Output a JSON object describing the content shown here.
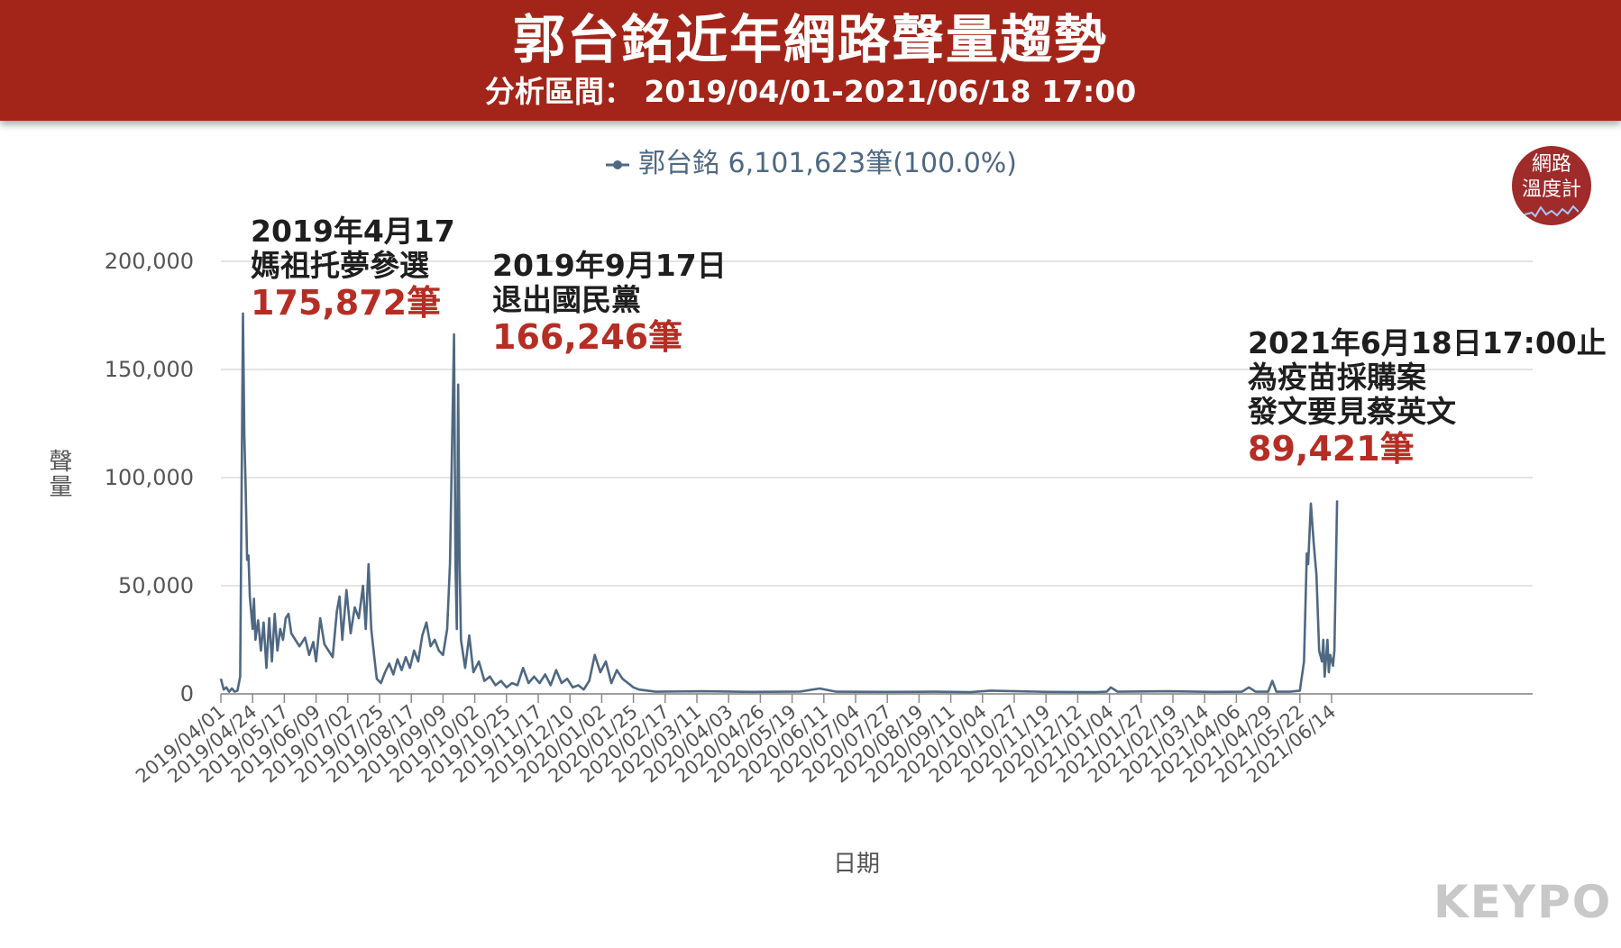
{
  "header": {
    "title": "郭台銘近年網路聲量趨勢",
    "subtitle": "分析區間： 2019/04/01-2021/06/18 17:00"
  },
  "legend": {
    "label": "郭台銘 6,101,623筆(100.0%)"
  },
  "badge": {
    "line1": "網路",
    "line2": "溫度計"
  },
  "brand": "KEYPO",
  "annotations": [
    {
      "line1": "2019年4月17",
      "line2": "媽祖托夢參選",
      "value": "175,872筆"
    },
    {
      "line1": "2019年9月17日",
      "line2": "退出國民黨",
      "value": "166,246筆"
    },
    {
      "line1": "2021年6月18日17:00止",
      "line2": "為疫苗採購案",
      "line3": "發文要見蔡英文",
      "value": "89,421筆"
    }
  ],
  "chart_data": {
    "type": "line",
    "xlabel": "日期",
    "ylabel": "聲量",
    "ylim": [
      0,
      200000
    ],
    "yticks": [
      0,
      50000,
      100000,
      150000,
      200000
    ],
    "ytick_labels": [
      "0",
      "50,000",
      "100,000",
      "150,000",
      "200,000"
    ],
    "grid": true,
    "legend_position": "top-center",
    "x_tick_labels": [
      "2019/04/01",
      "2019/04/24",
      "2019/05/17",
      "2019/06/09",
      "2019/07/02",
      "2019/07/25",
      "2019/08/17",
      "2019/09/09",
      "2019/10/02",
      "2019/10/25",
      "2019/11/17",
      "2019/12/10",
      "2020/01/02",
      "2020/01/25",
      "2020/02/17",
      "2020/03/11",
      "2020/04/03",
      "2020/04/26",
      "2020/05/19",
      "2020/06/11",
      "2020/07/04",
      "2020/07/27",
      "2020/08/19",
      "2020/09/11",
      "2020/10/04",
      "2020/10/27",
      "2020/11/19",
      "2020/12/12",
      "2021/01/04",
      "2021/01/27",
      "2021/02/19",
      "2021/03/14",
      "2021/04/06",
      "2021/04/29",
      "2021/05/22",
      "2021/06/14"
    ],
    "series": [
      {
        "name": "郭台銘",
        "color": "#4f6882",
        "points": [
          [
            "2019/04/01",
            7000
          ],
          [
            "2019/04/03",
            2000
          ],
          [
            "2019/04/05",
            3000
          ],
          [
            "2019/04/07",
            1000
          ],
          [
            "2019/04/09",
            2500
          ],
          [
            "2019/04/11",
            1000
          ],
          [
            "2019/04/13",
            1500
          ],
          [
            "2019/04/15",
            8000
          ],
          [
            "2019/04/17",
            175872
          ],
          [
            "2019/04/18",
            120000
          ],
          [
            "2019/04/19",
            95000
          ],
          [
            "2019/04/20",
            62000
          ],
          [
            "2019/04/21",
            64000
          ],
          [
            "2019/04/22",
            45000
          ],
          [
            "2019/04/24",
            30000
          ],
          [
            "2019/04/25",
            44000
          ],
          [
            "2019/04/26",
            25000
          ],
          [
            "2019/04/28",
            34000
          ],
          [
            "2019/04/30",
            20000
          ],
          [
            "2019/05/02",
            33000
          ],
          [
            "2019/05/04",
            12000
          ],
          [
            "2019/05/06",
            35000
          ],
          [
            "2019/05/08",
            15000
          ],
          [
            "2019/05/10",
            37000
          ],
          [
            "2019/05/12",
            20000
          ],
          [
            "2019/05/14",
            30000
          ],
          [
            "2019/05/16",
            25000
          ],
          [
            "2019/05/18",
            35000
          ],
          [
            "2019/05/20",
            37000
          ],
          [
            "2019/05/22",
            28000
          ],
          [
            "2019/05/25",
            25000
          ],
          [
            "2019/05/28",
            22000
          ],
          [
            "2019/06/01",
            26000
          ],
          [
            "2019/06/04",
            18000
          ],
          [
            "2019/06/07",
            24000
          ],
          [
            "2019/06/09",
            15000
          ],
          [
            "2019/06/12",
            35000
          ],
          [
            "2019/06/15",
            23000
          ],
          [
            "2019/06/18",
            20000
          ],
          [
            "2019/06/21",
            17000
          ],
          [
            "2019/06/24",
            38000
          ],
          [
            "2019/06/26",
            45000
          ],
          [
            "2019/06/28",
            25000
          ],
          [
            "2019/07/01",
            48000
          ],
          [
            "2019/07/04",
            28000
          ],
          [
            "2019/07/07",
            40000
          ],
          [
            "2019/07/10",
            35000
          ],
          [
            "2019/07/13",
            50000
          ],
          [
            "2019/07/15",
            30000
          ],
          [
            "2019/07/17",
            60000
          ],
          [
            "2019/07/19",
            30000
          ],
          [
            "2019/07/21",
            18000
          ],
          [
            "2019/07/23",
            7000
          ],
          [
            "2019/07/26",
            5000
          ],
          [
            "2019/07/29",
            10000
          ],
          [
            "2019/08/01",
            14000
          ],
          [
            "2019/08/04",
            9000
          ],
          [
            "2019/08/07",
            16000
          ],
          [
            "2019/08/10",
            11000
          ],
          [
            "2019/08/13",
            17000
          ],
          [
            "2019/08/16",
            12000
          ],
          [
            "2019/08/19",
            20000
          ],
          [
            "2019/08/22",
            15000
          ],
          [
            "2019/08/25",
            27000
          ],
          [
            "2019/08/28",
            33000
          ],
          [
            "2019/08/31",
            22000
          ],
          [
            "2019/09/03",
            25000
          ],
          [
            "2019/09/06",
            20000
          ],
          [
            "2019/09/09",
            18000
          ],
          [
            "2019/09/12",
            30000
          ],
          [
            "2019/09/14",
            60000
          ],
          [
            "2019/09/17",
            166246
          ],
          [
            "2019/09/18",
            60000
          ],
          [
            "2019/09/19",
            30000
          ],
          [
            "2019/09/20",
            143000
          ],
          [
            "2019/09/21",
            60000
          ],
          [
            "2019/09/22",
            25000
          ],
          [
            "2019/09/25",
            12000
          ],
          [
            "2019/09/28",
            27000
          ],
          [
            "2019/10/01",
            10000
          ],
          [
            "2019/10/05",
            15000
          ],
          [
            "2019/10/09",
            6000
          ],
          [
            "2019/10/13",
            8000
          ],
          [
            "2019/10/17",
            4000
          ],
          [
            "2019/10/21",
            6000
          ],
          [
            "2019/10/25",
            3000
          ],
          [
            "2019/10/29",
            5000
          ],
          [
            "2019/11/02",
            4000
          ],
          [
            "2019/11/06",
            12000
          ],
          [
            "2019/11/10",
            5000
          ],
          [
            "2019/11/14",
            8000
          ],
          [
            "2019/11/18",
            5000
          ],
          [
            "2019/11/22",
            9000
          ],
          [
            "2019/11/26",
            4000
          ],
          [
            "2019/11/30",
            11000
          ],
          [
            "2019/12/04",
            5000
          ],
          [
            "2019/12/08",
            7000
          ],
          [
            "2019/12/12",
            3000
          ],
          [
            "2019/12/16",
            4000
          ],
          [
            "2019/12/20",
            2000
          ],
          [
            "2019/12/24",
            6000
          ],
          [
            "2019/12/28",
            18000
          ],
          [
            "2020/01/01",
            10000
          ],
          [
            "2020/01/05",
            15000
          ],
          [
            "2020/01/09",
            5000
          ],
          [
            "2020/01/13",
            11000
          ],
          [
            "2020/01/17",
            7000
          ],
          [
            "2020/01/21",
            5000
          ],
          [
            "2020/01/25",
            3000
          ],
          [
            "2020/01/29",
            2000
          ],
          [
            "2020/02/10",
            1000
          ],
          [
            "2020/03/15",
            1200
          ],
          [
            "2020/04/20",
            900
          ],
          [
            "2020/05/25",
            1100
          ],
          [
            "2020/06/08",
            2500
          ],
          [
            "2020/06/20",
            1000
          ],
          [
            "2020/07/25",
            900
          ],
          [
            "2020/08/30",
            1000
          ],
          [
            "2020/09/25",
            800
          ],
          [
            "2020/10/10",
            1500
          ],
          [
            "2020/11/20",
            900
          ],
          [
            "2020/12/25",
            800
          ],
          [
            "2021/01/02",
            1000
          ],
          [
            "2021/01/05",
            3000
          ],
          [
            "2021/01/10",
            1000
          ],
          [
            "2021/02/15",
            1200
          ],
          [
            "2021/03/20",
            900
          ],
          [
            "2021/04/10",
            1000
          ],
          [
            "2021/04/15",
            3000
          ],
          [
            "2021/04/20",
            1000
          ],
          [
            "2021/04/29",
            1000
          ],
          [
            "2021/05/02",
            6000
          ],
          [
            "2021/05/05",
            1000
          ],
          [
            "2021/05/15",
            1000
          ],
          [
            "2021/05/22",
            1500
          ],
          [
            "2021/05/25",
            15000
          ],
          [
            "2021/05/27",
            65000
          ],
          [
            "2021/05/28",
            60000
          ],
          [
            "2021/05/30",
            88000
          ],
          [
            "2021/06/01",
            70000
          ],
          [
            "2021/06/03",
            55000
          ],
          [
            "2021/06/05",
            20000
          ],
          [
            "2021/06/07",
            15000
          ],
          [
            "2021/06/08",
            25000
          ],
          [
            "2021/06/09",
            8000
          ],
          [
            "2021/06/11",
            25000
          ],
          [
            "2021/06/12",
            10000
          ],
          [
            "2021/06/13",
            18000
          ],
          [
            "2021/06/15",
            13000
          ],
          [
            "2021/06/16",
            20000
          ],
          [
            "2021/06/18",
            89421
          ]
        ]
      }
    ]
  }
}
